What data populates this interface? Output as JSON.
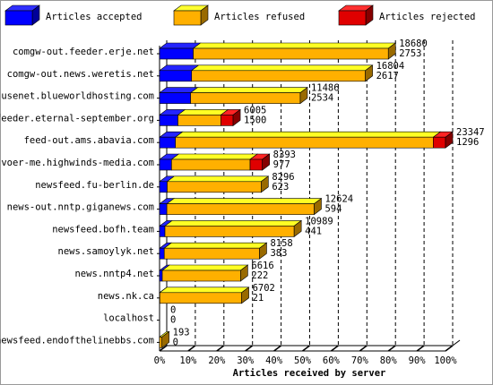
{
  "chart_data": {
    "type": "bar3d",
    "xlabel": "Articles received by server",
    "categories": [
      "comgw-out.feeder.erje.net",
      "comgw-out.news.weretis.net",
      "usenet.blueworldhosting.com",
      "feeder.eternal-september.org",
      "feed-out.ams.abavia.com",
      "voer-me.highwinds-media.com",
      "newsfeed.fu-berlin.de",
      "news-out.nntp.giganews.com",
      "newsfeed.bofh.team",
      "news.samoylyk.net",
      "news.nntp4.net",
      "news.nk.ca",
      "localhost",
      "newsfeed.endofthelinebbs.com"
    ],
    "totals": [
      18680,
      16804,
      11486,
      6005,
      23347,
      8393,
      8296,
      12624,
      10989,
      8158,
      6616,
      6702,
      0,
      193
    ],
    "series": [
      {
        "name": "Articles accepted",
        "color": "#0000ff",
        "values": [
          2753,
          2617,
          2534,
          1500,
          1296,
          977,
          623,
          594,
          441,
          383,
          222,
          21,
          0,
          0
        ]
      },
      {
        "name": "Articles refused",
        "color": "#ffb000",
        "values": [
          15927,
          14187,
          8952,
          3505,
          21051,
          6416,
          7673,
          12030,
          10548,
          7775,
          6394,
          6681,
          0,
          193
        ]
      },
      {
        "name": "Articles rejected",
        "color": "#e00000",
        "values": [
          0,
          0,
          0,
          1000,
          1000,
          1000,
          0,
          0,
          0,
          0,
          0,
          0,
          0,
          0
        ]
      }
    ],
    "xlim": [
      0,
      100
    ],
    "xticks": [
      {
        "value": 0,
        "label": "0%"
      },
      {
        "value": 10,
        "label": "10%"
      },
      {
        "value": 20,
        "label": "20%"
      },
      {
        "value": 30,
        "label": "30%"
      },
      {
        "value": 40,
        "label": "40%"
      },
      {
        "value": 50,
        "label": "50%"
      },
      {
        "value": 60,
        "label": "60%"
      },
      {
        "value": 70,
        "label": "70%"
      },
      {
        "value": 80,
        "label": "80%"
      },
      {
        "value": 90,
        "label": "90%"
      },
      {
        "value": 100,
        "label": "100%"
      }
    ],
    "grid": true
  }
}
